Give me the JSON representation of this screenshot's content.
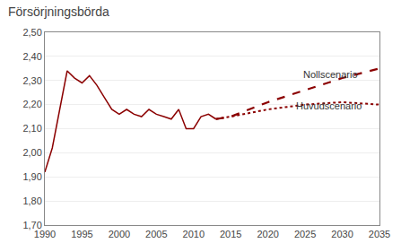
{
  "chart_data": {
    "type": "line",
    "title": "Försörjningsbörda",
    "series": [
      {
        "x": [
          1990,
          1991,
          1992,
          1993,
          1994,
          1995,
          1996,
          1997,
          1998,
          1999,
          2000,
          2001,
          2002,
          2003,
          2004,
          2005,
          2006,
          2007,
          2008,
          2009,
          2010,
          2011,
          2012,
          2013
        ],
        "values": [
          1.92,
          2.02,
          2.18,
          2.34,
          2.31,
          2.29,
          2.32,
          2.28,
          2.23,
          2.18,
          2.16,
          2.18,
          2.16,
          2.15,
          2.18,
          2.16,
          2.15,
          2.14,
          2.18,
          2.1,
          2.1,
          2.15,
          2.16,
          2.14
        ],
        "color": "#8B0000",
        "line_style": "solid"
      },
      {
        "x": [
          2013,
          2015,
          2020,
          2025,
          2030,
          2035
        ],
        "values": [
          2.14,
          2.15,
          2.21,
          2.26,
          2.31,
          2.35
        ],
        "color": "#8B0000",
        "line_style": "dashed"
      },
      {
        "x": [
          2013,
          2015,
          2020,
          2025,
          2030,
          2035
        ],
        "values": [
          2.14,
          2.15,
          2.18,
          2.2,
          2.21,
          2.2
        ],
        "color": "#8B0000",
        "line_style": "dotted"
      }
    ],
    "annotations": [
      {
        "text": "Nollscenario",
        "x": 2024.5,
        "y": 2.295
      },
      {
        "text": "Huvudscenario",
        "x": 2023.5,
        "y": 2.165
      }
    ],
    "xlim": [
      1990,
      2035
    ],
    "xticks": [
      1990,
      1995,
      2000,
      2005,
      2010,
      2015,
      2020,
      2025,
      2030,
      2035
    ],
    "ylim": [
      1.7,
      2.5
    ],
    "yticks": [
      {
        "value": 1.7,
        "label": "1,70"
      },
      {
        "value": 1.8,
        "label": "1,80"
      },
      {
        "value": 1.9,
        "label": "1,90"
      },
      {
        "value": 2.0,
        "label": "2,00"
      },
      {
        "value": 2.1,
        "label": "2,10"
      },
      {
        "value": 2.2,
        "label": "2,20"
      },
      {
        "value": 2.3,
        "label": "2,30"
      },
      {
        "value": 2.4,
        "label": "2,40"
      },
      {
        "value": 2.5,
        "label": "2,50"
      }
    ],
    "grid": "y"
  }
}
